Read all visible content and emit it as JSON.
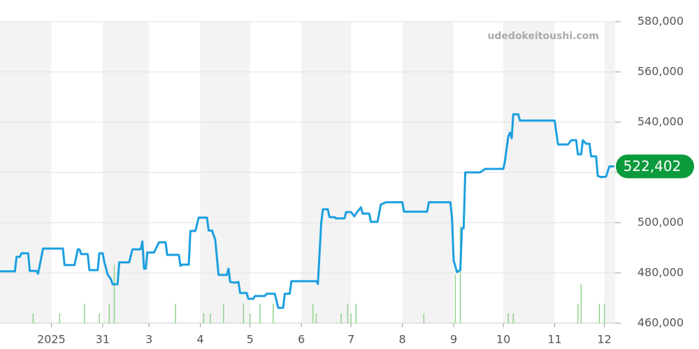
{
  "chart_data": {
    "type": "line",
    "watermark": "udedokeitoushi.com",
    "xlim": [
      -31,
      340.5
    ],
    "xticks": [
      {
        "value": 0,
        "label": "2025"
      },
      31,
      {
        "value": 59,
        "label": "3"
      },
      {
        "value": 90,
        "label": "4"
      },
      {
        "value": 120,
        "label": "5"
      },
      {
        "value": 151,
        "label": "6"
      },
      {
        "value": 181,
        "label": "7"
      },
      {
        "value": 212,
        "label": "8"
      },
      {
        "value": 243,
        "label": "9"
      },
      {
        "value": 273,
        "label": "10"
      },
      {
        "value": 304,
        "label": "11"
      },
      {
        "value": 334,
        "label": "12"
      }
    ],
    "ylim": [
      460000,
      580000
    ],
    "yticks": [
      {
        "value": 460000,
        "label": "460,000"
      },
      {
        "value": 480000,
        "label": "480,000"
      },
      {
        "value": 500000,
        "label": "500,000"
      },
      {
        "value": 520000,
        "label": "520,000"
      },
      {
        "value": 540000,
        "label": "540,000"
      },
      {
        "value": 560000,
        "label": "560,000"
      },
      {
        "value": 580000,
        "label": "580,000"
      }
    ],
    "grid": true,
    "series": [
      {
        "color": "#1a9fe0",
        "x": [
          -31,
          -22,
          -21,
          -19,
          -18,
          -14,
          -13,
          -9,
          -8,
          -7,
          -5,
          7,
          8,
          14,
          16,
          17,
          18,
          22,
          23,
          28,
          29,
          31,
          32,
          34,
          36,
          37,
          40,
          41,
          47,
          49,
          54,
          55,
          56,
          57,
          58,
          62,
          65,
          69,
          70,
          77,
          78,
          79,
          83,
          84,
          87,
          89,
          94,
          95,
          97,
          99,
          101,
          106,
          107,
          108,
          111,
          113,
          114,
          118,
          119,
          122,
          123,
          129,
          130,
          135,
          137,
          140,
          141,
          144,
          145,
          160,
          161,
          163,
          164,
          167,
          168,
          171,
          172,
          177,
          178,
          181,
          183,
          184,
          187,
          188,
          192,
          193,
          197,
          199,
          202,
          212,
          213,
          227,
          228,
          241,
          242,
          243,
          245,
          247,
          248,
          249,
          250,
          259,
          262,
          273,
          274,
          276,
          277,
          278,
          279,
          282,
          283,
          304,
          306,
          312,
          314,
          317,
          318,
          320,
          321,
          323,
          325,
          326,
          329,
          330,
          332,
          335,
          337,
          340
        ],
        "values": [
          480600,
          480600,
          486400,
          486400,
          487800,
          487800,
          480800,
          480800,
          479700,
          483100,
          489700,
          489700,
          483100,
          483100,
          489400,
          489400,
          487500,
          487500,
          481100,
          481100,
          487800,
          487800,
          484400,
          479400,
          477500,
          475500,
          475500,
          484200,
          484200,
          489400,
          489400,
          492500,
          481700,
          481700,
          488100,
          488100,
          492200,
          492200,
          487200,
          487200,
          482800,
          483300,
          483300,
          496700,
          496700,
          502000,
          502000,
          496900,
          496900,
          493300,
          479200,
          479200,
          481700,
          476400,
          476100,
          476400,
          472000,
          472000,
          469700,
          469700,
          470800,
          470800,
          471700,
          471700,
          466100,
          466100,
          471700,
          471700,
          476700,
          476700,
          475600,
          499700,
          505300,
          505300,
          502200,
          502200,
          501700,
          501700,
          504200,
          504200,
          502500,
          503600,
          506100,
          503600,
          503600,
          500300,
          500300,
          507200,
          508100,
          508100,
          504400,
          504400,
          508100,
          508100,
          501700,
          485000,
          480300,
          481100,
          497800,
          497800,
          520000,
          520000,
          521400,
          521400,
          524700,
          534400,
          535800,
          533600,
          543100,
          543100,
          540600,
          540600,
          531100,
          531100,
          532800,
          532800,
          527200,
          527200,
          532800,
          531400,
          531400,
          526400,
          526400,
          518600,
          518100,
          518300,
          522402,
          522402
        ]
      }
    ],
    "volume": {
      "color": "#8fd18b",
      "lim": [
        0,
        31
      ],
      "x": [
        -11,
        5,
        20,
        29,
        35,
        38,
        75,
        92,
        96,
        104,
        116,
        120,
        126,
        134,
        158,
        160,
        175,
        179,
        181,
        184,
        225,
        244,
        247,
        276,
        279,
        318,
        320,
        331,
        334
      ],
      "values": [
        1,
        1,
        2,
        1,
        2,
        6,
        2,
        1,
        1,
        2,
        2,
        1,
        2,
        2,
        2,
        1,
        1,
        2,
        1,
        2,
        1,
        5,
        10,
        1,
        1,
        2,
        4,
        2,
        2
      ]
    },
    "last_label": {
      "value": 522402,
      "label": "522,402",
      "color": "#0b9a3c"
    }
  }
}
